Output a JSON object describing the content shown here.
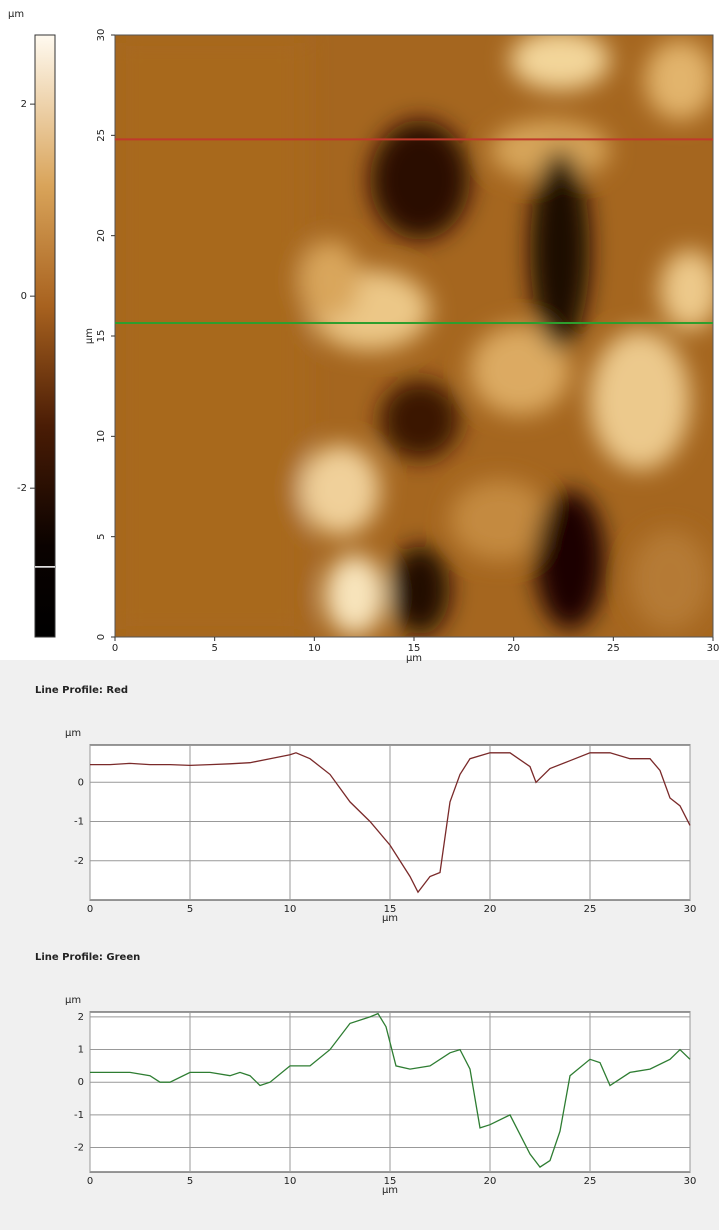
{
  "chart_data": [
    {
      "type": "image",
      "xlim": [
        0,
        30
      ],
      "ylim": [
        0,
        30
      ],
      "xticks": [
        0,
        5,
        10,
        15,
        20,
        25,
        30
      ],
      "yticks": [
        0,
        5,
        10,
        15,
        20,
        25,
        30
      ],
      "x_label": "µm",
      "y_label": "µm",
      "colorbar": {
        "label": "µm",
        "lim": [
          -3.55,
          2.72
        ],
        "ticks": [
          2,
          0,
          -2
        ],
        "marker": -2.82
      },
      "lines": [
        {
          "color": "#c0392b",
          "y": 24.8
        },
        {
          "color": "#2e9e2e",
          "y": 15.65
        }
      ]
    },
    {
      "type": "line",
      "title": "Line Profile: Red",
      "y_label": "µm",
      "x_label": "µm",
      "x": [
        0,
        1,
        2,
        3,
        4,
        5,
        6,
        7,
        8,
        9,
        10,
        10.3,
        11,
        12,
        13,
        14,
        15,
        16,
        16.4,
        17,
        17.5,
        18,
        18.5,
        19,
        20,
        21,
        22,
        22.3,
        23,
        24,
        25,
        26,
        27,
        28,
        28.5,
        29,
        29.5,
        30
      ],
      "series": [
        {
          "color": "#7a2a2a",
          "values": [
            0.45,
            0.45,
            0.48,
            0.45,
            0.45,
            0.43,
            0.45,
            0.47,
            0.5,
            0.6,
            0.7,
            0.75,
            0.6,
            0.2,
            -0.5,
            -1.0,
            -1.6,
            -2.4,
            -2.8,
            -2.4,
            -2.3,
            -0.5,
            0.2,
            0.6,
            0.75,
            0.75,
            0.4,
            0.0,
            0.35,
            0.55,
            0.75,
            0.75,
            0.6,
            0.6,
            0.3,
            -0.4,
            -0.6,
            -1.1
          ]
        }
      ],
      "xlim": [
        0,
        30
      ],
      "ylim": [
        -3,
        0.95
      ],
      "xticks": [
        0,
        5,
        10,
        15,
        20,
        25,
        30
      ],
      "yticks": [
        0,
        -1,
        -2
      ],
      "grid": true
    },
    {
      "type": "line",
      "title": "Line Profile: Green",
      "y_label": "µm",
      "x_label": "µm",
      "x": [
        0,
        2,
        3,
        3.5,
        4,
        5,
        6,
        7,
        7.5,
        8,
        8.5,
        9,
        10,
        11,
        12,
        13,
        14,
        14.4,
        14.8,
        15.3,
        16,
        17,
        18,
        18.5,
        19,
        19.5,
        20,
        21,
        22,
        22.5,
        23,
        23.5,
        24,
        25,
        25.5,
        26,
        27,
        28,
        29,
        29.5,
        30
      ],
      "series": [
        {
          "color": "#2e7d32",
          "values": [
            0.3,
            0.3,
            0.2,
            0.0,
            0.0,
            0.3,
            0.3,
            0.2,
            0.3,
            0.2,
            -0.1,
            0.0,
            0.5,
            0.5,
            1.0,
            1.8,
            2.0,
            2.1,
            1.7,
            0.5,
            0.4,
            0.5,
            0.9,
            1.0,
            0.4,
            -1.4,
            -1.3,
            -1.0,
            -2.2,
            -2.6,
            -2.4,
            -1.5,
            0.2,
            0.7,
            0.6,
            -0.1,
            0.3,
            0.4,
            0.7,
            1.0,
            0.7
          ]
        }
      ],
      "xlim": [
        0,
        30
      ],
      "ylim": [
        -2.75,
        2.15
      ],
      "xticks": [
        0,
        5,
        10,
        15,
        20,
        25,
        30
      ],
      "yticks": [
        2,
        1,
        0,
        -1,
        -2
      ],
      "grid": true
    }
  ]
}
